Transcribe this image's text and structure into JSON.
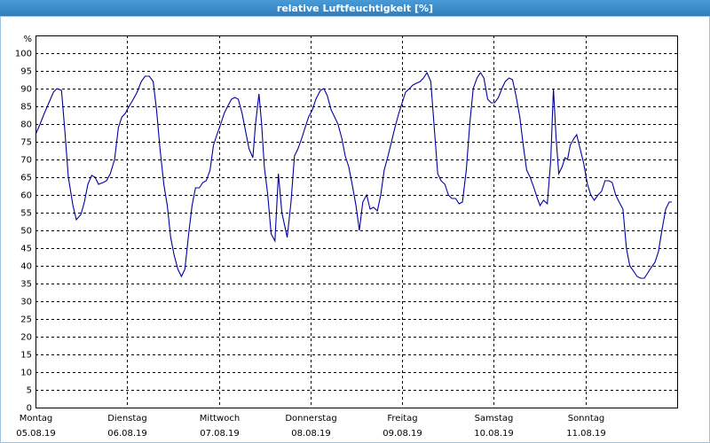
{
  "chart_data": {
    "type": "line",
    "title": "relative Luftfeuchtigkeit [%]",
    "ylabel": "%",
    "xlim": [
      0,
      168
    ],
    "ylim": [
      0,
      100
    ],
    "xticks": [
      {
        "value": 0,
        "label": "Montag",
        "sublabel": "05.08.19"
      },
      {
        "value": 24,
        "label": "Dienstag",
        "sublabel": "06.08.19"
      },
      {
        "value": 48,
        "label": "Mittwoch",
        "sublabel": "07.08.19"
      },
      {
        "value": 72,
        "label": "Donnerstag",
        "sublabel": "08.08.19"
      },
      {
        "value": 96,
        "label": "Freitag",
        "sublabel": "09.08.19"
      },
      {
        "value": 120,
        "label": "Samstag",
        "sublabel": "10.08.19"
      },
      {
        "value": 144,
        "label": "Sonntag",
        "sublabel": "11.08.19"
      }
    ],
    "yticks": [
      0,
      5,
      10,
      15,
      20,
      25,
      30,
      35,
      40,
      45,
      50,
      55,
      60,
      65,
      70,
      75,
      80,
      85,
      90,
      95,
      100
    ],
    "grid": true,
    "x": [
      0.0,
      1.2,
      2.3,
      3.5,
      4.7,
      5.6,
      6.8,
      7.7,
      8.6,
      9.8,
      10.7,
      11.9,
      12.8,
      13.7,
      14.7,
      15.6,
      16.5,
      17.7,
      18.6,
      19.6,
      20.7,
      21.7,
      22.6,
      23.5,
      24.5,
      25.6,
      26.6,
      27.7,
      28.7,
      29.8,
      30.8,
      31.7,
      32.6,
      33.6,
      34.5,
      35.4,
      36.3,
      37.3,
      38.2,
      39.1,
      40.1,
      41.0,
      41.9,
      42.9,
      43.8,
      44.7,
      45.7,
      46.6,
      47.5,
      48.5,
      49.4,
      50.3,
      51.3,
      52.2,
      53.1,
      54.1,
      55.0,
      55.9,
      56.9,
      57.6,
      58.5,
      59.2,
      59.9,
      60.8,
      61.7,
      62.7,
      63.6,
      64.5,
      65.5,
      65.9,
      66.9,
      67.8,
      68.7,
      69.7,
      70.6,
      71.5,
      72.5,
      73.4,
      74.6,
      75.5,
      76.4,
      77.4,
      78.3,
      79.2,
      80.2,
      81.1,
      82.0,
      82.9,
      83.9,
      84.8,
      85.7,
      86.7,
      87.6,
      88.5,
      89.5,
      90.4,
      91.3,
      92.3,
      93.2,
      94.1,
      95.1,
      96.0,
      96.9,
      97.9,
      98.8,
      99.7,
      100.7,
      101.6,
      102.5,
      103.5,
      104.4,
      105.3,
      106.2,
      107.2,
      108.1,
      109.0,
      110.0,
      110.9,
      111.8,
      112.8,
      113.7,
      114.6,
      115.6,
      116.5,
      117.4,
      118.4,
      119.3,
      120.2,
      121.2,
      122.1,
      123.0,
      124.0,
      124.9,
      125.8,
      126.8,
      127.7,
      128.6,
      129.5,
      130.5,
      131.4,
      132.1,
      133.0,
      134.0,
      134.9,
      135.6,
      136.3,
      137.0,
      137.9,
      138.6,
      139.3,
      140.0,
      141.0,
      141.7,
      142.6,
      143.5,
      144.5,
      145.4,
      146.3,
      147.3,
      148.2,
      149.1,
      150.1,
      151.0,
      151.9,
      152.8,
      153.8,
      154.7,
      155.6,
      156.6,
      157.5,
      158.4,
      159.4,
      160.3,
      161.2,
      162.2,
      163.1,
      164.0,
      165.0,
      165.9,
      166.6
    ],
    "series": [
      {
        "color": "#0000a0",
        "values": [
          77,
          80,
          83,
          86,
          89,
          90,
          89.5,
          78,
          65,
          57,
          53,
          54.5,
          58,
          63,
          65.5,
          65,
          63,
          63.5,
          64,
          66,
          70,
          79,
          82,
          83,
          85,
          87,
          89,
          92,
          93.5,
          93.5,
          92,
          84,
          73,
          63,
          57,
          48,
          43,
          39,
          37,
          39,
          49,
          57,
          62,
          62,
          63.5,
          64,
          67,
          74,
          77,
          80,
          83,
          85,
          87,
          87.5,
          87,
          83,
          78,
          73,
          70.5,
          80,
          88.5,
          80,
          68,
          60,
          49,
          47,
          66,
          55,
          50,
          48,
          58,
          71,
          73,
          76,
          79,
          82,
          84,
          87,
          89.5,
          90,
          88,
          84,
          82,
          80,
          76,
          71,
          68,
          63,
          57,
          50,
          58,
          60,
          56,
          56.5,
          55.5,
          60,
          67,
          71,
          75,
          79,
          83,
          86,
          89,
          90,
          91,
          91.5,
          92,
          93,
          94.5,
          92,
          79,
          66,
          64,
          63,
          60,
          59,
          59,
          57.5,
          58,
          67,
          80,
          90,
          93,
          94.5,
          93,
          87,
          86,
          86,
          87.5,
          90,
          92,
          93,
          92.5,
          88,
          82,
          74,
          67,
          65,
          62,
          59,
          57,
          58.5,
          57.5,
          70,
          90,
          76,
          66,
          68,
          70.5,
          70,
          74,
          76,
          77,
          73,
          69,
          63,
          60,
          58.5,
          60,
          61,
          64,
          64,
          63.5,
          60,
          58,
          56,
          45,
          40,
          38.5,
          37,
          36.5,
          36.5,
          38,
          39.5,
          41,
          44,
          50,
          56,
          58,
          58
        ]
      }
    ]
  }
}
